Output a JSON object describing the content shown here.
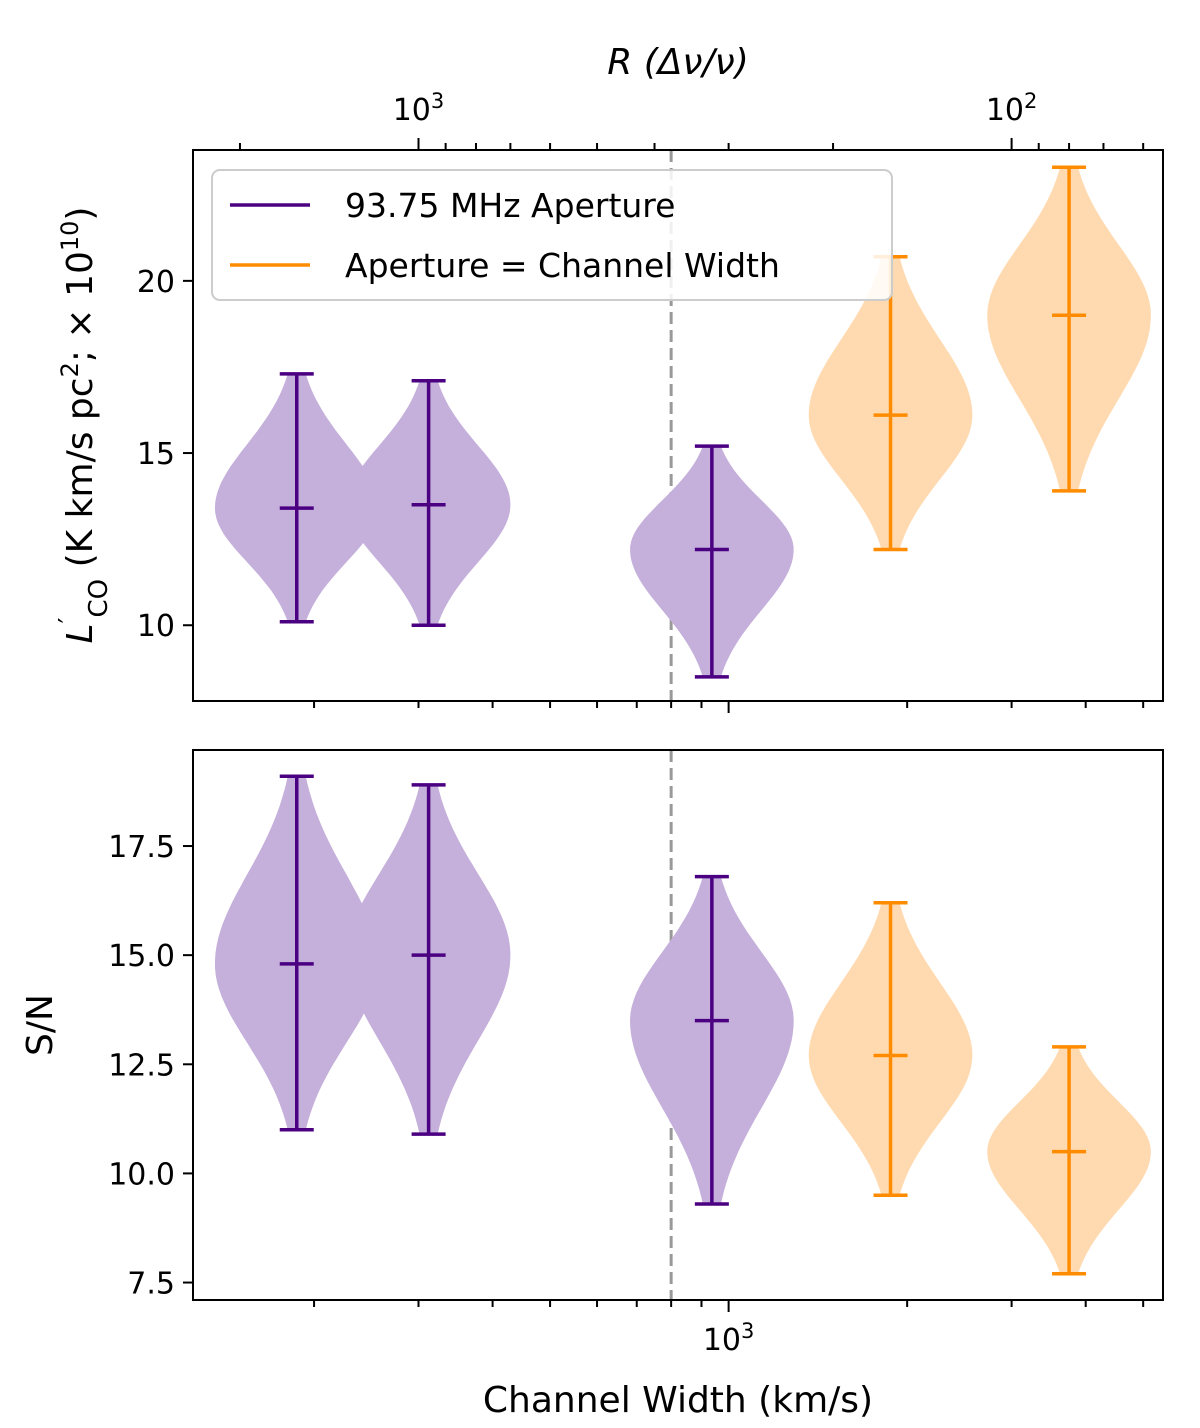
{
  "chart_data": [
    {
      "panel": "top",
      "type": "violin",
      "ylabel_main": "L",
      "ylabel_prime": "′",
      "ylabel_sub": "CO",
      "ylabel_units": " (K km/s pc",
      "ylabel_units_sup": "2",
      "ylabel_mult": ";  × 10",
      "ylabel_mult_sup": "10",
      "ylabel_close": ")",
      "top_axis_label": "R (Δν/ν)",
      "top_axis_ticks": [
        {
          "base": "10",
          "exp": "3",
          "channel_width": 300
        },
        {
          "base": "10",
          "exp": "2",
          "channel_width": 3000
        }
      ],
      "xscale": "log",
      "xlim": [
        125,
        5400
      ],
      "ylim": [
        7.8,
        23.8
      ],
      "yticks": [
        10,
        15,
        20
      ],
      "ytick_labels": [
        "10",
        "15",
        "20"
      ],
      "legend": {
        "position": "upper-left",
        "entries": [
          {
            "label": "93.75 MHz Aperture",
            "color": "#4b0082"
          },
          {
            "label": "Aperture = Channel Width",
            "color": "#ff8c00"
          }
        ]
      },
      "series": [
        {
          "name": "93.75 MHz Aperture",
          "color": "#4b0082",
          "fill": "#c5afdb",
          "points": [
            {
              "x": 187,
              "min": 10.1,
              "median": 13.4,
              "max": 17.3,
              "halfwidth": 0.15
            },
            {
              "x": 312,
              "min": 10.0,
              "median": 13.5,
              "max": 17.1,
              "halfwidth": 0.15
            },
            {
              "x": 937,
              "min": 8.5,
              "median": 12.2,
              "max": 15.2,
              "halfwidth": 0.15
            }
          ]
        },
        {
          "name": "Aperture = Channel Width",
          "color": "#ff8c00",
          "fill": "#ffdab0",
          "points": [
            {
              "x": 1875,
              "min": 12.2,
              "median": 16.1,
              "max": 20.7,
              "halfwidth": 0.15
            },
            {
              "x": 3750,
              "min": 13.9,
              "median": 19.0,
              "max": 23.3,
              "halfwidth": 0.15
            }
          ]
        }
      ],
      "vline": {
        "x": 800,
        "style": "dashed",
        "color": "#999999"
      }
    },
    {
      "panel": "bottom",
      "type": "violin",
      "ylabel": "S/N",
      "xlabel": "Channel Width (km/s)",
      "xscale": "log",
      "xlim": [
        125,
        5400
      ],
      "xticks": [
        {
          "base": "10",
          "exp": "3",
          "value": 1000
        }
      ],
      "ylim": [
        7.1,
        19.7
      ],
      "yticks": [
        7.5,
        10.0,
        12.5,
        15.0,
        17.5
      ],
      "ytick_labels": [
        "7.5",
        "10.0",
        "12.5",
        "15.0",
        "17.5"
      ],
      "series": [
        {
          "name": "93.75 MHz Aperture",
          "color": "#4b0082",
          "fill": "#c5afdb",
          "points": [
            {
              "x": 187,
              "min": 11.0,
              "median": 14.8,
              "max": 19.1,
              "halfwidth": 0.15
            },
            {
              "x": 312,
              "min": 10.9,
              "median": 15.0,
              "max": 18.9,
              "halfwidth": 0.15
            },
            {
              "x": 937,
              "min": 9.3,
              "median": 13.5,
              "max": 16.8,
              "halfwidth": 0.15
            }
          ]
        },
        {
          "name": "Aperture = Channel Width",
          "color": "#ff8c00",
          "fill": "#ffdab0",
          "points": [
            {
              "x": 1875,
              "min": 9.5,
              "median": 12.7,
              "max": 16.2,
              "halfwidth": 0.15
            },
            {
              "x": 3750,
              "min": 7.7,
              "median": 10.5,
              "max": 12.9,
              "halfwidth": 0.15
            }
          ]
        }
      ],
      "vline": {
        "x": 800,
        "style": "dashed",
        "color": "#999999"
      }
    }
  ]
}
